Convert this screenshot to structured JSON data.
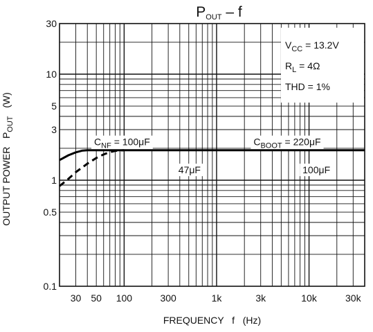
{
  "chart_data": {
    "type": "line",
    "title": {
      "main": "P",
      "sub": "OUT",
      "suffix": " – f"
    },
    "xlabel": "FREQUENCY   f   (Hz)",
    "ylabel": {
      "main": "OUTPUT POWER   P",
      "sub": "OUT",
      "suffix": "   (W)"
    },
    "x_scale": "log",
    "y_scale": "log",
    "xlim": [
      20,
      40000
    ],
    "ylim": [
      0.1,
      30
    ],
    "grid": true,
    "x_ticks": [
      {
        "value": 30,
        "label": "30"
      },
      {
        "value": 50,
        "label": "50"
      },
      {
        "value": 100,
        "label": "100"
      },
      {
        "value": 300,
        "label": "300"
      },
      {
        "value": 1000,
        "label": "1k"
      },
      {
        "value": 3000,
        "label": "3k"
      },
      {
        "value": 10000,
        "label": "10k"
      },
      {
        "value": 30000,
        "label": "30k"
      }
    ],
    "y_ticks": [
      {
        "value": 0.1,
        "label": "0.1"
      },
      {
        "value": 0.5,
        "label": "0.5"
      },
      {
        "value": 1,
        "label": "1"
      },
      {
        "value": 3,
        "label": "3"
      },
      {
        "value": 5,
        "label": "5"
      },
      {
        "value": 10,
        "label": "10"
      },
      {
        "value": 30,
        "label": "30"
      }
    ],
    "conditions": [
      {
        "main": "V",
        "sub": "CC",
        "value": " = 13.2V"
      },
      {
        "main": "R",
        "sub": "L",
        "value": " = 4Ω"
      },
      {
        "main": "THD",
        "sub": "",
        "value": " = 1%"
      }
    ],
    "annotations": [
      {
        "main": "C",
        "sub": "NF",
        "value": " = 100μF",
        "x": 95,
        "y": 2.3
      },
      {
        "main": "C",
        "sub": "BOOT",
        "value": " = 220μF",
        "x": 5800,
        "y": 2.3
      },
      {
        "main": "",
        "sub": "",
        "value": "47μF",
        "x": 510,
        "y": 1.25
      },
      {
        "main": "",
        "sub": "",
        "value": "100μF",
        "x": 12000,
        "y": 1.25
      }
    ],
    "series": [
      {
        "style": "solid",
        "x": [
          20,
          25,
          30,
          35,
          40,
          60,
          100,
          1000,
          10000,
          40000
        ],
        "y": [
          1.55,
          1.72,
          1.83,
          1.9,
          1.92,
          1.92,
          1.92,
          1.92,
          1.92,
          1.92
        ]
      },
      {
        "style": "dashed",
        "x": [
          20,
          25,
          30,
          40,
          50,
          60,
          70,
          80,
          100
        ],
        "y": [
          0.88,
          1.03,
          1.19,
          1.43,
          1.62,
          1.75,
          1.84,
          1.89,
          1.92
        ]
      }
    ]
  }
}
